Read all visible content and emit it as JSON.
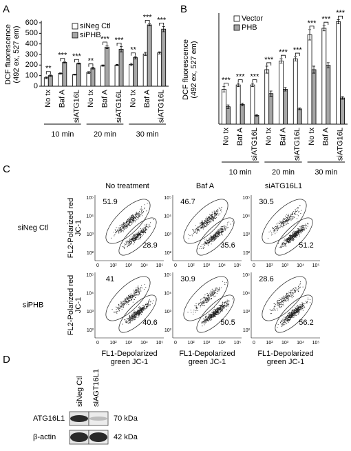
{
  "panel_labels": [
    "A",
    "B",
    "C",
    "D"
  ],
  "chart_data": [
    {
      "type": "bar",
      "ylabel": [
        "DCF fluorescence",
        "(492 ex, 527 em)"
      ],
      "groups": [
        "10 min",
        "20 min",
        "30 min"
      ],
      "categories": [
        "No tx",
        "Baf A",
        "siATG16L",
        "No tx",
        "Baf A",
        "siATG16L",
        "No tx",
        "Baf A",
        "siATG16L"
      ],
      "series": [
        {
          "name": "siNeg Ctl",
          "color": "#ffffff",
          "values": [
            80,
            120,
            110,
            130,
            195,
            200,
            205,
            305,
            315
          ],
          "errors": [
            8,
            5,
            5,
            8,
            6,
            6,
            12,
            15,
            10
          ]
        },
        {
          "name": "siPHB",
          "color": "#a6a6a6",
          "values": [
            100,
            225,
            215,
            170,
            370,
            350,
            270,
            580,
            540
          ],
          "errors": [
            6,
            5,
            5,
            8,
            15,
            25,
            12,
            10,
            25
          ]
        }
      ],
      "annotations": [
        "**",
        "***",
        "***",
        "**",
        "***",
        "***",
        "**",
        "***",
        "***"
      ],
      "ylim": [
        0,
        600
      ],
      "yticks": [
        0,
        100,
        200,
        300,
        400,
        500,
        600
      ]
    },
    {
      "type": "bar",
      "ylabel": [
        "DCF fluorescence",
        "(492 ex, 527 em)"
      ],
      "groups": [
        "10 min",
        "20 min",
        "30 min"
      ],
      "categories": [
        "No tx",
        "Baf A",
        "siATG16L",
        "No tx",
        "Baf A",
        "siATG16L",
        "No tx",
        "Baf A",
        "siATG16L"
      ],
      "series": [
        {
          "name": "Vector",
          "color": "#ffffff",
          "values": [
            80,
            90,
            90,
            125,
            145,
            150,
            205,
            220,
            235
          ],
          "errors": [
            6,
            4,
            4,
            8,
            5,
            5,
            12,
            6,
            5
          ]
        },
        {
          "name": "PHB",
          "color": "#a6a6a6",
          "values": [
            40,
            45,
            20,
            70,
            80,
            35,
            125,
            135,
            60
          ],
          "errors": [
            4,
            3,
            2,
            6,
            4,
            2,
            8,
            6,
            3
          ]
        }
      ],
      "annotations": [
        "***",
        "***",
        "***",
        "***",
        "***",
        "***",
        "***",
        "***",
        "***"
      ],
      "ylim": [
        0,
        250
      ]
    }
  ],
  "flow": {
    "column_titles": [
      "No treatment",
      "Baf A",
      "siATG16L1"
    ],
    "row_labels": [
      "siNeg Ctl",
      "siPHB"
    ],
    "ylabel": [
      "FL2-Polarized red",
      "JC-1"
    ],
    "xlabel": [
      "FL1-Depolarized",
      "green JC-1"
    ],
    "xticks": [
      "0",
      "10²",
      "10³",
      "10⁴",
      "10⁵"
    ],
    "yticks": [
      "10⁵",
      "10⁴",
      "10³",
      "10²"
    ],
    "upper": [
      [
        51.9,
        46.7,
        30.5
      ],
      [
        41,
        30.9,
        28.6
      ]
    ],
    "lower": [
      [
        28.9,
        35.6,
        51.2
      ],
      [
        40.6,
        50.5,
        56.2
      ]
    ]
  },
  "blot": {
    "lanes": [
      "siNeg Ctl",
      "siAGT16L1"
    ],
    "rows": [
      {
        "protein": "ATG16L1",
        "size": "70 kDa"
      },
      {
        "protein": "β-actin",
        "size": "42 kDa"
      }
    ]
  }
}
